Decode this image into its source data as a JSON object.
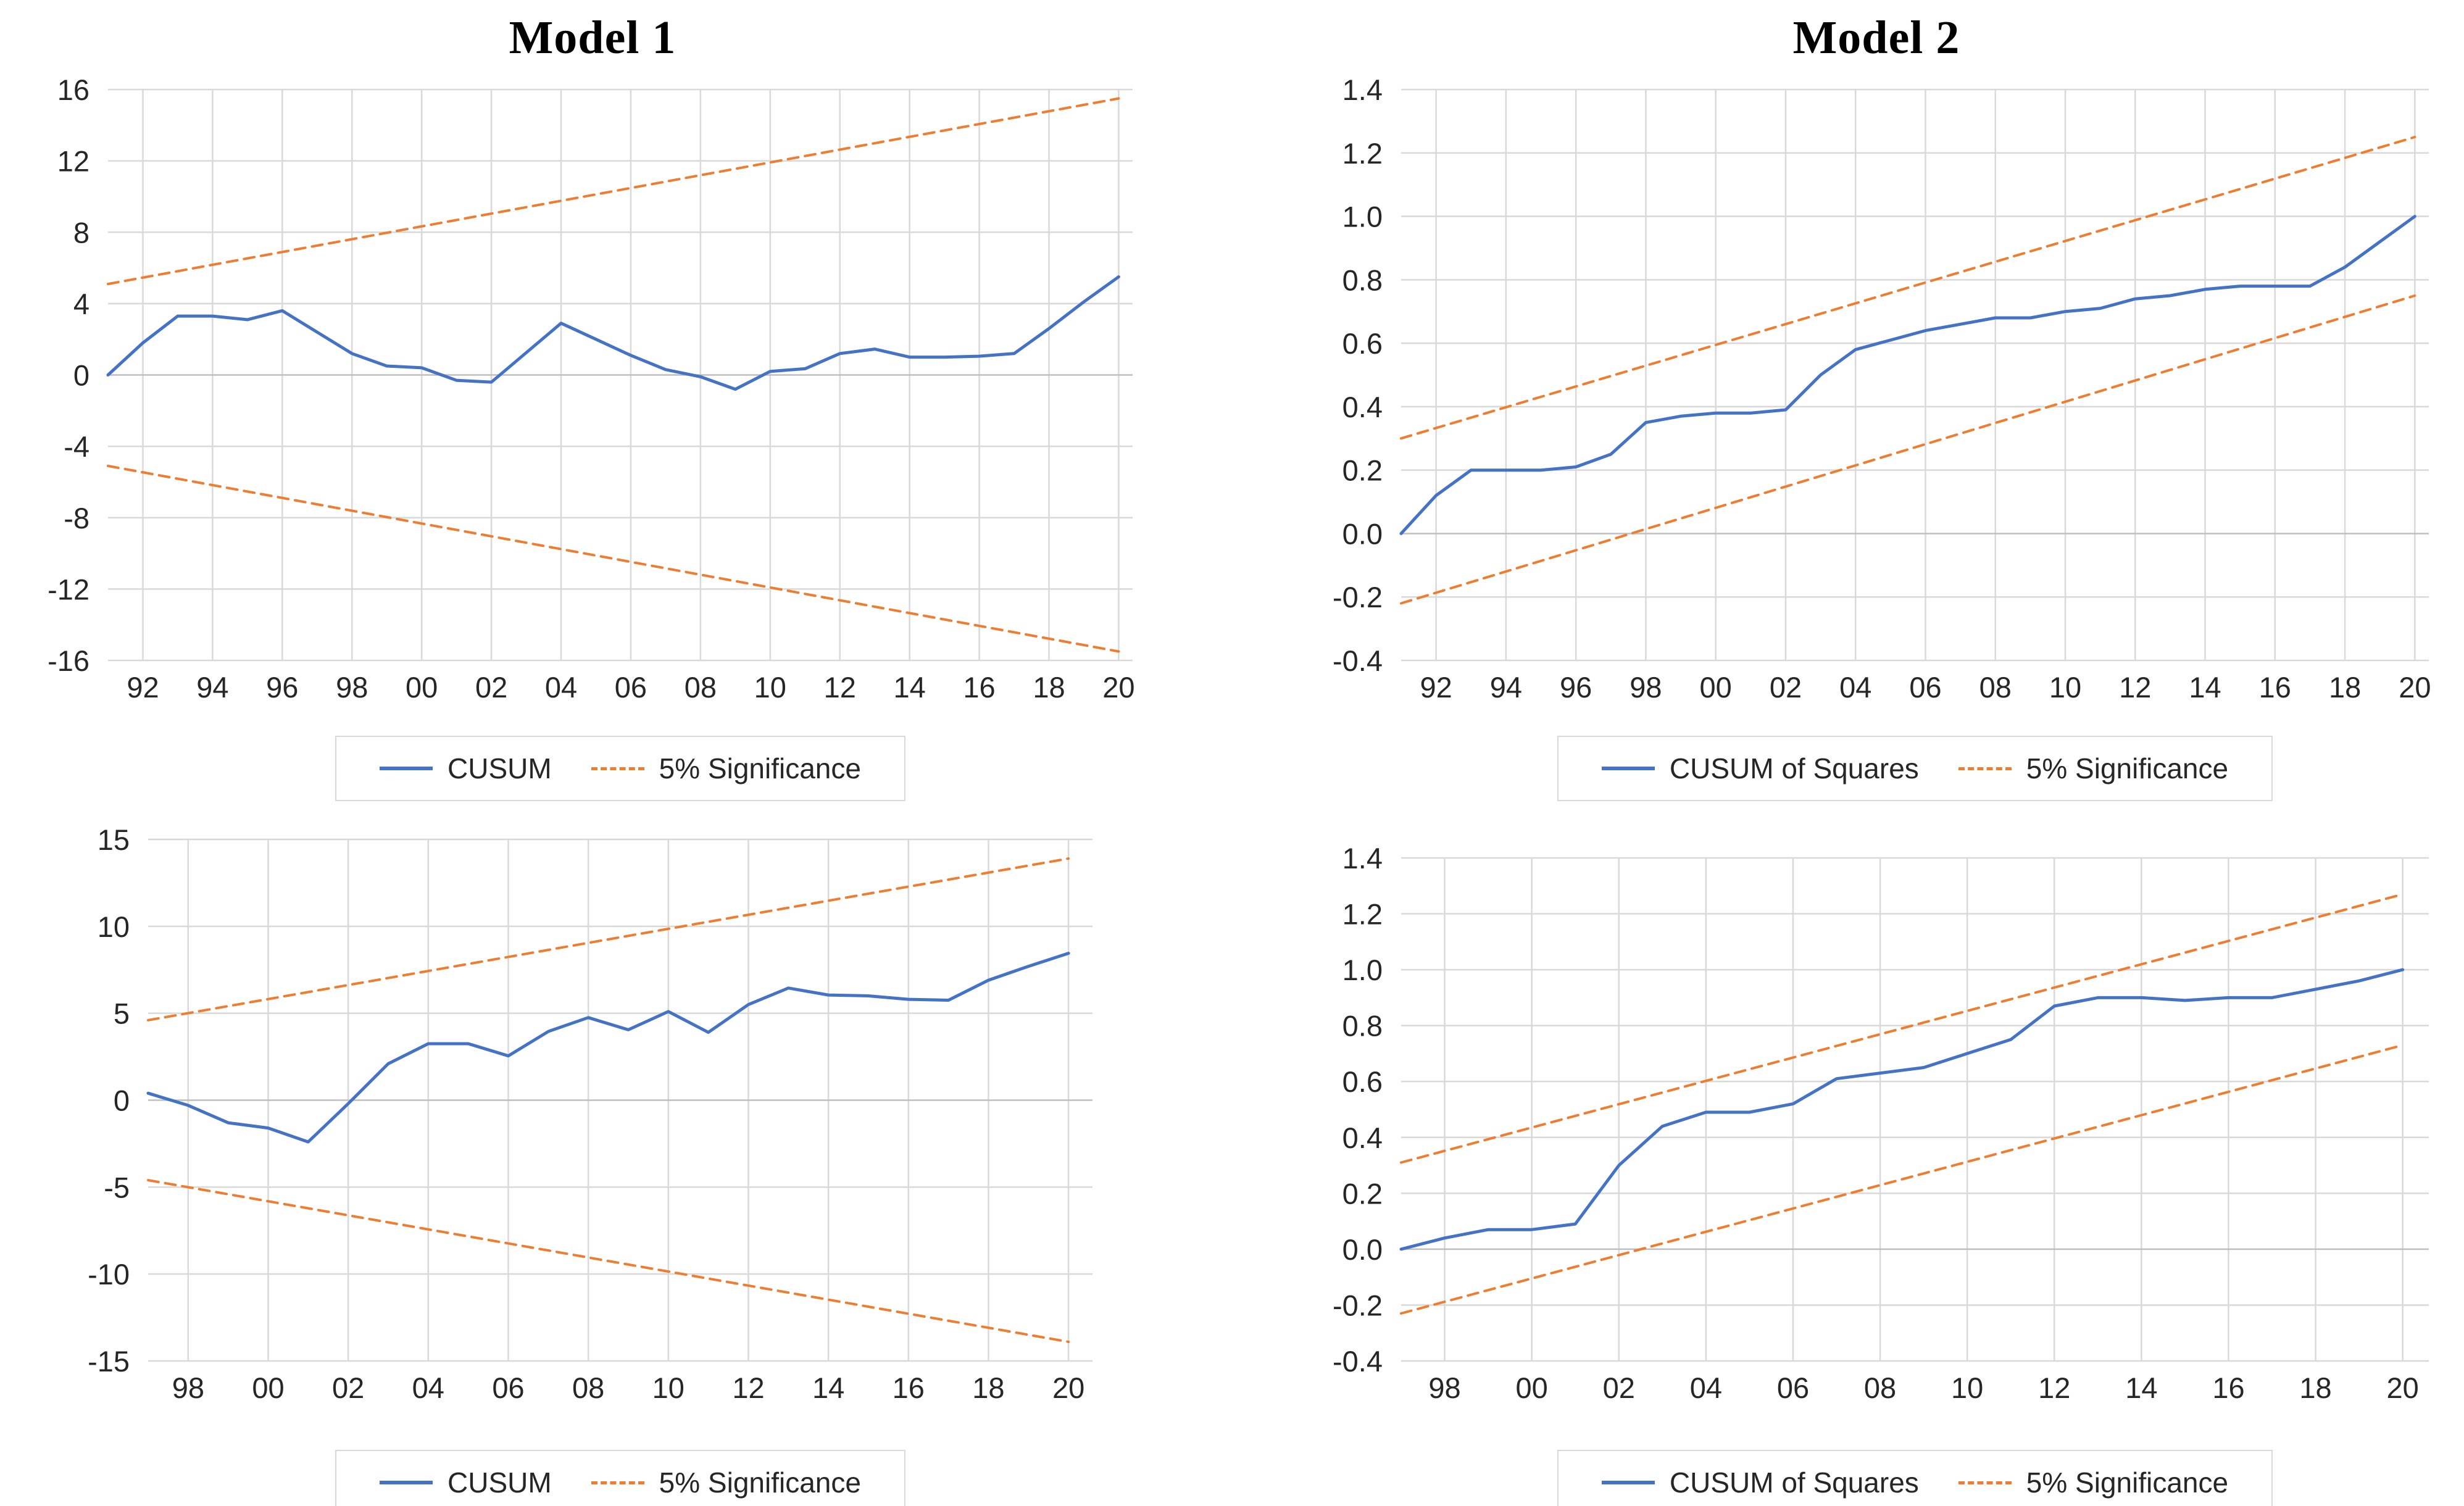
{
  "figure": {
    "background": "#ffffff",
    "columns": [
      {
        "title": "Model 1"
      },
      {
        "title": "Model 2"
      }
    ]
  },
  "colors": {
    "cusum_line": "#4472c4",
    "significance_line": "#ed7d31",
    "gridline": "#d9d9d9",
    "zero_gridline": "#bfbfbf",
    "tick_text": "#262626",
    "legend_border": "#d9d9d9"
  },
  "chart_data": [
    {
      "id": "model1_cusum_top_left",
      "type": "line",
      "column_title": "Model 1",
      "x_range": [
        1991,
        2020.4
      ],
      "ylim": [
        -16,
        16
      ],
      "yticks": [
        16,
        12,
        8,
        4,
        0,
        -4,
        -8,
        -12,
        -16
      ],
      "ytick_labels": [
        "16",
        "12",
        "8",
        "4",
        "0",
        "-4",
        "-8",
        "-12",
        "-16"
      ],
      "xticks": [
        1992,
        1994,
        1996,
        1998,
        2000,
        2002,
        2004,
        2006,
        2008,
        2010,
        2012,
        2014,
        2016,
        2018,
        2020
      ],
      "xtick_labels": [
        "92",
        "94",
        "96",
        "98",
        "00",
        "02",
        "04",
        "06",
        "08",
        "10",
        "12",
        "14",
        "16",
        "18",
        "20"
      ],
      "grid": true,
      "legend_position": "bottom",
      "series": [
        {
          "name": "CUSUM",
          "style": "solid",
          "color_key": "cusum_line",
          "x": [
            1991,
            1992,
            1993,
            1994,
            1995,
            1996,
            1997,
            1998,
            1999,
            2000,
            2001,
            2002,
            2003,
            2004,
            2005,
            2006,
            2007,
            2008,
            2009,
            2010,
            2011,
            2012,
            2013,
            2014,
            2015,
            2016,
            2017,
            2018,
            2019,
            2020
          ],
          "y": [
            0,
            1.8,
            3.3,
            3.3,
            3.1,
            3.6,
            2.4,
            1.2,
            0.5,
            0.4,
            -0.3,
            -0.4,
            1.25,
            2.9,
            2.0,
            1.1,
            0.3,
            -0.1,
            -0.8,
            0.2,
            0.35,
            1.2,
            1.45,
            1.0,
            1.0,
            1.05,
            1.2,
            2.6,
            4.1,
            5.5
          ]
        },
        {
          "name": "5% Significance (upper)",
          "style": "dashed",
          "color_key": "significance_line",
          "x": [
            1991,
            2020
          ],
          "y": [
            5.1,
            15.5
          ]
        },
        {
          "name": "5% Significance (lower)",
          "style": "dashed",
          "color_key": "significance_line",
          "x": [
            1991,
            2020
          ],
          "y": [
            -5.1,
            -15.5
          ]
        }
      ],
      "legend": [
        {
          "label": "CUSUM",
          "style": "solid"
        },
        {
          "label": "5% Significance",
          "style": "dashed"
        }
      ]
    },
    {
      "id": "model2_cusum_of_squares_top_right",
      "type": "line",
      "column_title": "Model 2",
      "x_range": [
        1991,
        2020.4
      ],
      "ylim": [
        -0.4,
        1.4
      ],
      "yticks": [
        1.4,
        1.2,
        1.0,
        0.8,
        0.6,
        0.4,
        0.2,
        0.0,
        -0.2,
        -0.4
      ],
      "ytick_labels": [
        "1.4",
        "1.2",
        "1.0",
        "0.8",
        "0.6",
        "0.4",
        "0.2",
        "0.0",
        "-0.2",
        "-0.4"
      ],
      "xticks": [
        1992,
        1994,
        1996,
        1998,
        2000,
        2002,
        2004,
        2006,
        2008,
        2010,
        2012,
        2014,
        2016,
        2018,
        2020
      ],
      "xtick_labels": [
        "92",
        "94",
        "96",
        "98",
        "00",
        "02",
        "04",
        "06",
        "08",
        "10",
        "12",
        "14",
        "16",
        "18",
        "20"
      ],
      "grid": true,
      "legend_position": "bottom",
      "series": [
        {
          "name": "CUSUM of Squares",
          "style": "solid",
          "color_key": "cusum_line",
          "x": [
            1991,
            1992,
            1993,
            1994,
            1995,
            1996,
            1997,
            1998,
            1999,
            2000,
            2001,
            2002,
            2003,
            2004,
            2005,
            2006,
            2007,
            2008,
            2009,
            2010,
            2011,
            2012,
            2013,
            2014,
            2015,
            2016,
            2017,
            2018,
            2019,
            2020
          ],
          "y": [
            0,
            0.12,
            0.2,
            0.2,
            0.2,
            0.21,
            0.25,
            0.35,
            0.37,
            0.38,
            0.38,
            0.39,
            0.5,
            0.58,
            0.61,
            0.64,
            0.66,
            0.68,
            0.68,
            0.7,
            0.71,
            0.74,
            0.75,
            0.77,
            0.78,
            0.78,
            0.78,
            0.84,
            0.92,
            1.0
          ]
        },
        {
          "name": "5% Significance (upper)",
          "style": "dashed",
          "color_key": "significance_line",
          "x": [
            1991,
            2020
          ],
          "y": [
            0.3,
            1.25
          ]
        },
        {
          "name": "5% Significance (lower)",
          "style": "dashed",
          "color_key": "significance_line",
          "x": [
            1991,
            2020
          ],
          "y": [
            -0.22,
            0.75
          ]
        }
      ],
      "legend": [
        {
          "label": "CUSUM of Squares",
          "style": "solid"
        },
        {
          "label": "5% Significance",
          "style": "dashed"
        }
      ]
    },
    {
      "id": "model1_cusum_bottom_left",
      "type": "line",
      "column_title": "Model 1",
      "x_range": [
        1997,
        2020.6
      ],
      "ylim": [
        -15,
        15
      ],
      "yticks": [
        15,
        10,
        5,
        0,
        -5,
        -10,
        -15
      ],
      "ytick_labels": [
        "15",
        "10",
        "5",
        "0",
        "-5",
        "-10",
        "-15"
      ],
      "xticks": [
        1998,
        2000,
        2002,
        2004,
        2006,
        2008,
        2010,
        2012,
        2014,
        2016,
        2018,
        2020
      ],
      "xtick_labels": [
        "98",
        "00",
        "02",
        "04",
        "06",
        "08",
        "10",
        "12",
        "14",
        "16",
        "18",
        "20"
      ],
      "grid": true,
      "legend_position": "bottom",
      "series": [
        {
          "name": "CUSUM",
          "style": "solid",
          "color_key": "cusum_line",
          "x": [
            1997,
            1998,
            1999,
            2000,
            2001,
            2002,
            2003,
            2004,
            2005,
            2006,
            2007,
            2008,
            2009,
            2010,
            2011,
            2012,
            2013,
            2014,
            2015,
            2016,
            2017,
            2018,
            2019,
            2020
          ],
          "y": [
            0.4,
            -0.3,
            -1.3,
            -1.6,
            -2.4,
            -0.2,
            2.1,
            3.25,
            3.25,
            2.55,
            3.95,
            4.75,
            4.05,
            5.1,
            3.9,
            5.5,
            6.45,
            6.05,
            6.0,
            5.8,
            5.75,
            6.9,
            7.7,
            8.45
          ]
        },
        {
          "name": "5% Significance (upper)",
          "style": "dashed",
          "color_key": "significance_line",
          "x": [
            1997,
            2020
          ],
          "y": [
            4.6,
            13.9
          ]
        },
        {
          "name": "5% Significance (lower)",
          "style": "dashed",
          "color_key": "significance_line",
          "x": [
            1997,
            2020
          ],
          "y": [
            -4.6,
            -13.9
          ]
        }
      ],
      "legend": [
        {
          "label": "CUSUM",
          "style": "solid"
        },
        {
          "label": "5% Significance",
          "style": "dashed"
        }
      ]
    },
    {
      "id": "model2_cusum_of_squares_bottom_right",
      "type": "line",
      "column_title": "Model 2",
      "x_range": [
        1997,
        2020.6
      ],
      "ylim": [
        -0.4,
        1.4
      ],
      "yticks": [
        1.4,
        1.2,
        1.0,
        0.8,
        0.6,
        0.4,
        0.2,
        0.0,
        -0.2,
        -0.4
      ],
      "ytick_labels": [
        "1.4",
        "1.2",
        "1.0",
        "0.8",
        "0.6",
        "0.4",
        "0.2",
        "0.0",
        "-0.2",
        "-0.4"
      ],
      "xticks": [
        1998,
        2000,
        2002,
        2004,
        2006,
        2008,
        2010,
        2012,
        2014,
        2016,
        2018,
        2020
      ],
      "xtick_labels": [
        "98",
        "00",
        "02",
        "04",
        "06",
        "08",
        "10",
        "12",
        "14",
        "16",
        "18",
        "20"
      ],
      "grid": true,
      "legend_position": "bottom",
      "series": [
        {
          "name": "CUSUM of Squares",
          "style": "solid",
          "color_key": "cusum_line",
          "x": [
            1997,
            1998,
            1999,
            2000,
            2001,
            2002,
            2003,
            2004,
            2005,
            2006,
            2007,
            2008,
            2009,
            2010,
            2011,
            2012,
            2013,
            2014,
            2015,
            2016,
            2017,
            2018,
            2019,
            2020
          ],
          "y": [
            0,
            0.04,
            0.07,
            0.07,
            0.09,
            0.3,
            0.44,
            0.49,
            0.49,
            0.52,
            0.61,
            0.63,
            0.65,
            0.7,
            0.75,
            0.87,
            0.9,
            0.9,
            0.89,
            0.9,
            0.9,
            0.93,
            0.96,
            1.0
          ]
        },
        {
          "name": "5% Significance (upper)",
          "style": "dashed",
          "color_key": "significance_line",
          "x": [
            1997,
            2020
          ],
          "y": [
            0.31,
            1.27
          ]
        },
        {
          "name": "5% Significance (lower)",
          "style": "dashed",
          "color_key": "significance_line",
          "x": [
            1997,
            2020
          ],
          "y": [
            -0.23,
            0.73
          ]
        }
      ],
      "legend": [
        {
          "label": "CUSUM of Squares",
          "style": "solid"
        },
        {
          "label": "5% Significance",
          "style": "dashed"
        }
      ]
    }
  ]
}
